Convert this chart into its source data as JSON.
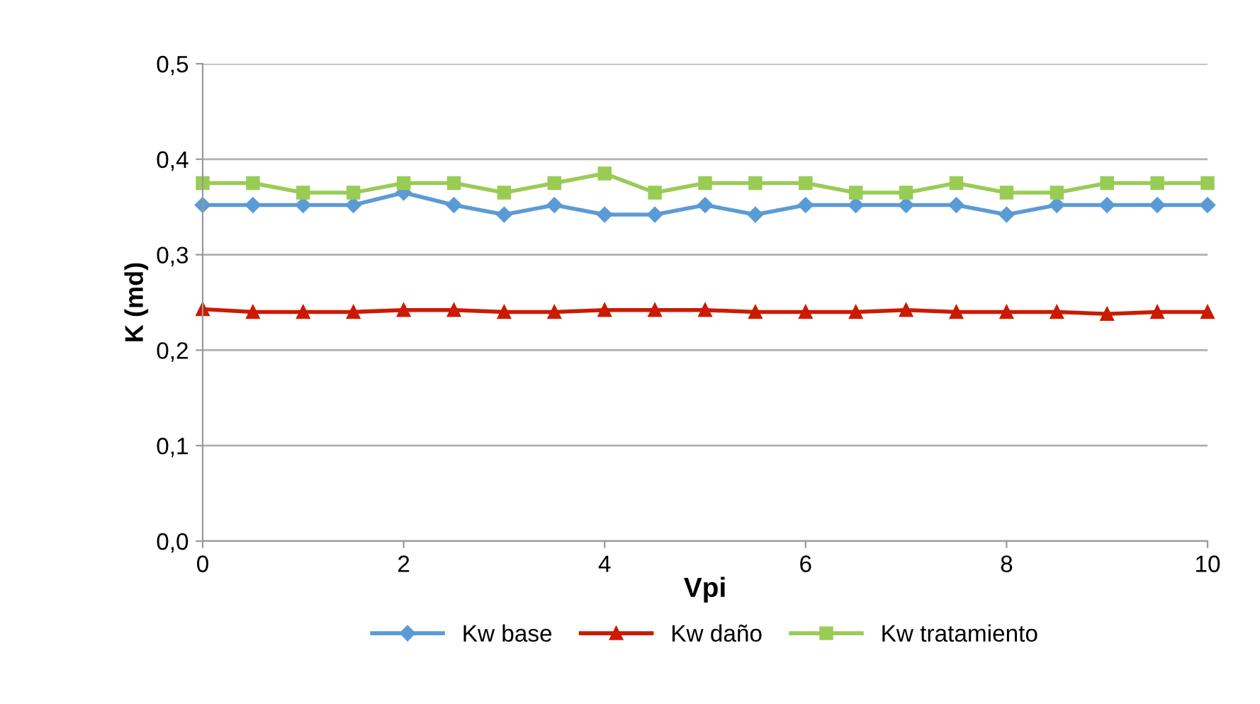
{
  "chart_data": {
    "type": "line",
    "xlabel": "Vpi",
    "ylabel": "K (md)",
    "x": [
      0,
      0.5,
      1,
      1.5,
      2,
      2.5,
      3,
      3.5,
      4,
      4.5,
      5,
      5.5,
      6,
      6.5,
      7,
      7.5,
      8,
      8.5,
      9,
      9.5,
      10
    ],
    "series": [
      {
        "name": "Kw base",
        "color": "#5b9bd5",
        "marker": "diamond",
        "values": [
          0.352,
          0.352,
          0.352,
          0.352,
          0.365,
          0.352,
          0.342,
          0.352,
          0.342,
          0.342,
          0.352,
          0.342,
          0.352,
          0.352,
          0.352,
          0.352,
          0.342,
          0.352,
          0.352,
          0.352,
          0.352
        ]
      },
      {
        "name": "Kw daño",
        "color": "#cc1a00",
        "marker": "triangle",
        "values": [
          0.243,
          0.24,
          0.24,
          0.24,
          0.242,
          0.242,
          0.24,
          0.24,
          0.242,
          0.242,
          0.242,
          0.24,
          0.24,
          0.24,
          0.242,
          0.24,
          0.24,
          0.24,
          0.238,
          0.24,
          0.24
        ]
      },
      {
        "name": "Kw tratamiento",
        "color": "#99cc55",
        "marker": "square",
        "values": [
          0.375,
          0.375,
          0.365,
          0.365,
          0.375,
          0.375,
          0.365,
          0.375,
          0.385,
          0.365,
          0.375,
          0.375,
          0.375,
          0.365,
          0.365,
          0.375,
          0.365,
          0.365,
          0.375,
          0.375,
          0.375
        ]
      }
    ],
    "xlim": [
      0,
      10
    ],
    "xticks": [
      0,
      2,
      4,
      6,
      8,
      10
    ],
    "ylim": [
      0,
      0.5
    ],
    "yticks": [
      {
        "value": 0,
        "label": "0,0"
      },
      {
        "value": 0.1,
        "label": "0,1"
      },
      {
        "value": 0.2,
        "label": "0,2"
      },
      {
        "value": 0.3,
        "label": "0,3"
      },
      {
        "value": 0.4,
        "label": "0,4"
      },
      {
        "value": 0.5,
        "label": "0,5"
      }
    ],
    "grid": "y",
    "legend": "bottom"
  }
}
